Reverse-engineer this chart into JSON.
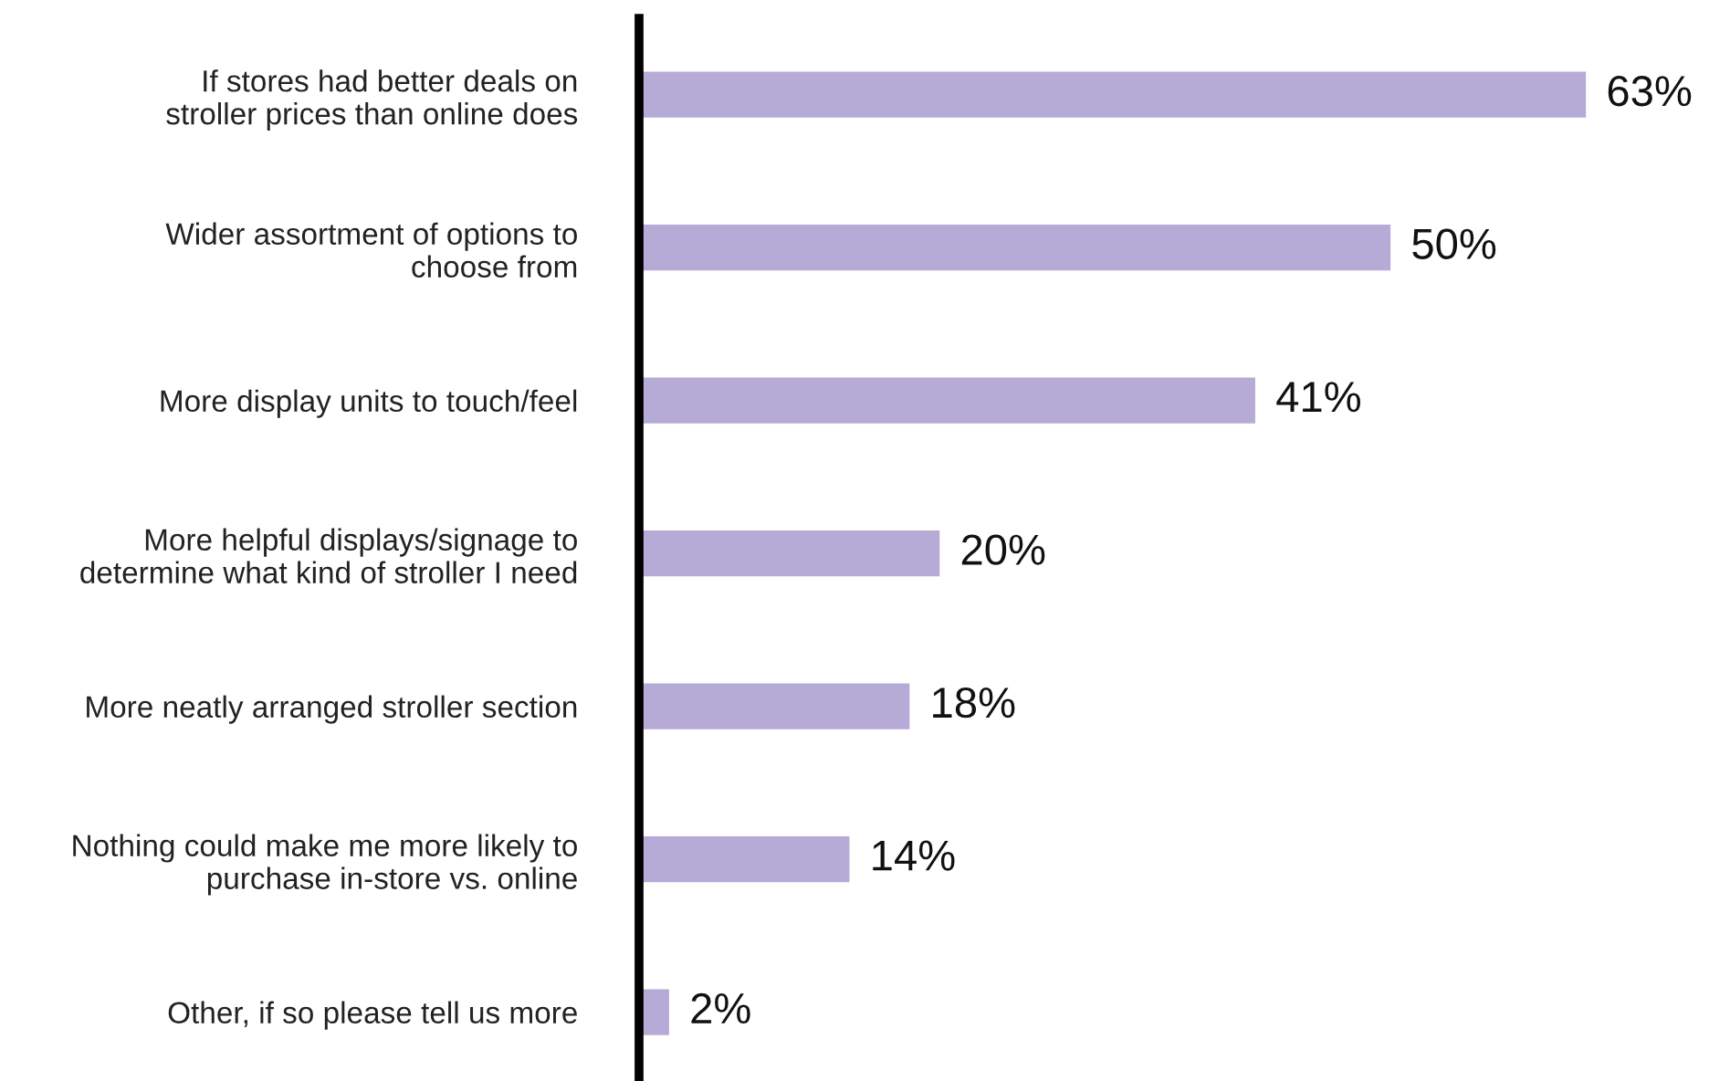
{
  "chart_data": {
    "type": "bar",
    "orientation": "horizontal",
    "categories": [
      "If stores had better deals on\nstroller prices than online does",
      "Wider assortment of options to\nchoose from",
      "More display units to touch/feel",
      "More helpful displays/signage to\ndetermine what kind of stroller I need",
      "More neatly arranged stroller section",
      "Nothing could make me more likely to\npurchase in-store vs. online",
      "Other, if so please tell us more"
    ],
    "values": [
      63,
      50,
      41,
      20,
      18,
      14,
      2
    ],
    "value_labels": [
      "63%",
      "50%",
      "41%",
      "20%",
      "18%",
      "14%",
      "2%"
    ],
    "color": "#b5abd6",
    "tick_labels": "y",
    "grid": false
  }
}
